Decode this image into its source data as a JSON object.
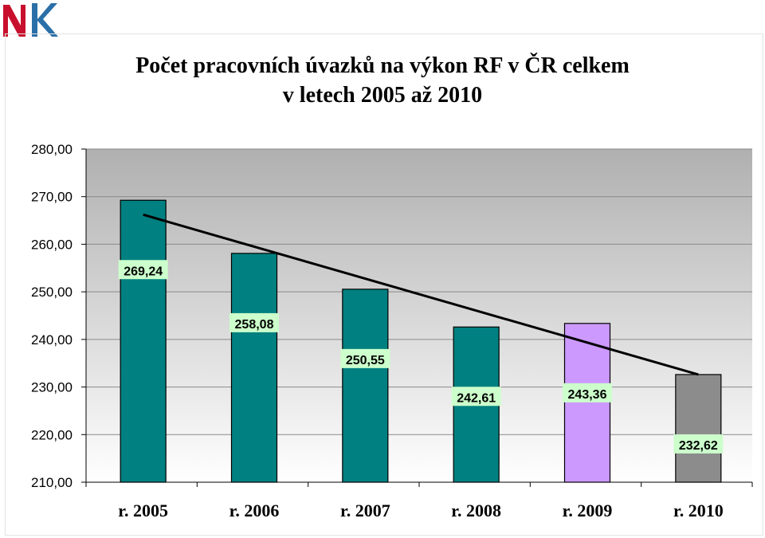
{
  "title_line1": "Počet pracovních úvazků na výkon RF v ČR celkem",
  "title_line2": "v letech 2005 až 2010",
  "chart_data": {
    "type": "bar",
    "title": "Počet pracovních úvazků na výkon RF v ČR celkem v letech 2005 až 2010",
    "categories": [
      "r. 2005",
      "r. 2006",
      "r. 2007",
      "r. 2008",
      "r. 2009",
      "r. 2010"
    ],
    "values": [
      269.24,
      258.08,
      250.55,
      242.61,
      243.36,
      232.62
    ],
    "value_labels": [
      "269,24",
      "258,08",
      "250,55",
      "242,61",
      "243,36",
      "232,62"
    ],
    "bar_colors": [
      "#008080",
      "#008080",
      "#008080",
      "#008080",
      "#cc99ff",
      "#8c8c8c"
    ],
    "ylim": [
      210,
      280
    ],
    "yticks": [
      210,
      220,
      230,
      240,
      250,
      260,
      270,
      280
    ],
    "ytick_labels": [
      "210,00",
      "220,00",
      "230,00",
      "240,00",
      "250,00",
      "260,00",
      "270,00",
      "280,00"
    ],
    "grid": true,
    "trendline": "linear",
    "legend": "none"
  }
}
